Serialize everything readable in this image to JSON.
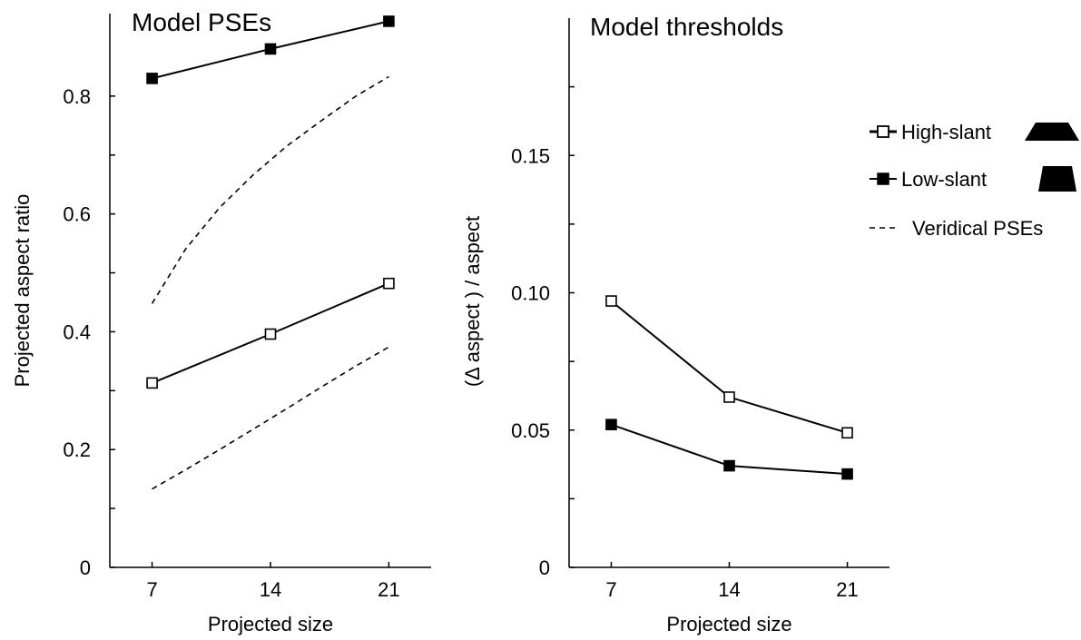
{
  "chart_data": [
    {
      "type": "line",
      "title": "Model PSEs",
      "xlabel": "Projected size",
      "ylabel": "Projected aspect ratio",
      "x": [
        7,
        14,
        21
      ],
      "xlim": [
        4.5,
        23.5
      ],
      "ylim": [
        0,
        0.94
      ],
      "xticks": [
        7,
        14,
        21
      ],
      "xtick_labels": [
        "7",
        "14",
        "21"
      ],
      "yticks": [
        0,
        0.1,
        0.2,
        0.3,
        0.4,
        0.5,
        0.6,
        0.7,
        0.8
      ],
      "ytick_labels": [
        "0",
        "",
        "0.2",
        "",
        "0.4",
        "",
        "0.6",
        "",
        "0.8"
      ],
      "series": [
        {
          "name": "Low-slant",
          "values": [
            0.83,
            0.88,
            0.927
          ],
          "marker": "filled-square",
          "line": "solid"
        },
        {
          "name": "High-slant",
          "values": [
            0.313,
            0.396,
            0.482
          ],
          "marker": "open-square",
          "line": "solid"
        },
        {
          "name": "Veridical PSEs",
          "x": [
            7,
            9,
            11,
            13,
            15,
            17,
            19,
            21
          ],
          "values": [
            0.448,
            0.541,
            0.611,
            0.667,
            0.716,
            0.758,
            0.799,
            0.833
          ],
          "marker": "none",
          "line": "dashed"
        },
        {
          "name": "Veridical PSEs",
          "x": [
            7,
            9,
            11,
            13,
            15,
            17,
            19,
            21
          ],
          "values": [
            0.133,
            0.166,
            0.2,
            0.235,
            0.27,
            0.306,
            0.341,
            0.374
          ],
          "marker": "none",
          "line": "dashed"
        }
      ],
      "grid": false,
      "legend": "none"
    },
    {
      "type": "line",
      "title": "Model thresholds",
      "xlabel": "Projected size",
      "ylabel": "(Δ aspect ) / aspect",
      "x": [
        7,
        14,
        21
      ],
      "xlim": [
        4.5,
        23.5
      ],
      "ylim": [
        0,
        0.2
      ],
      "xticks": [
        7,
        14,
        21
      ],
      "xtick_labels": [
        "7",
        "14",
        "21"
      ],
      "yticks": [
        0,
        0.025,
        0.05,
        0.075,
        0.1,
        0.125,
        0.15,
        0.175
      ],
      "ytick_labels": [
        "0",
        "",
        "0.05",
        "",
        "0.10",
        "",
        "0.15",
        ""
      ],
      "series": [
        {
          "name": "High-slant",
          "values": [
            0.097,
            0.062,
            0.049
          ],
          "marker": "open-square",
          "line": "solid"
        },
        {
          "name": "Low-slant",
          "values": [
            0.052,
            0.037,
            0.034
          ],
          "marker": "filled-square",
          "line": "solid"
        }
      ],
      "grid": false,
      "legend": "right"
    }
  ],
  "legend": {
    "items": [
      {
        "label": "High-slant",
        "marker": "open-square",
        "line": "solid",
        "icon": "high-slant-trapezoid-icon"
      },
      {
        "label": "Low-slant",
        "marker": "filled-square",
        "line": "solid",
        "icon": "low-slant-trapezoid-icon"
      },
      {
        "label": "Veridical PSEs",
        "marker": "none",
        "line": "dashed"
      }
    ]
  }
}
